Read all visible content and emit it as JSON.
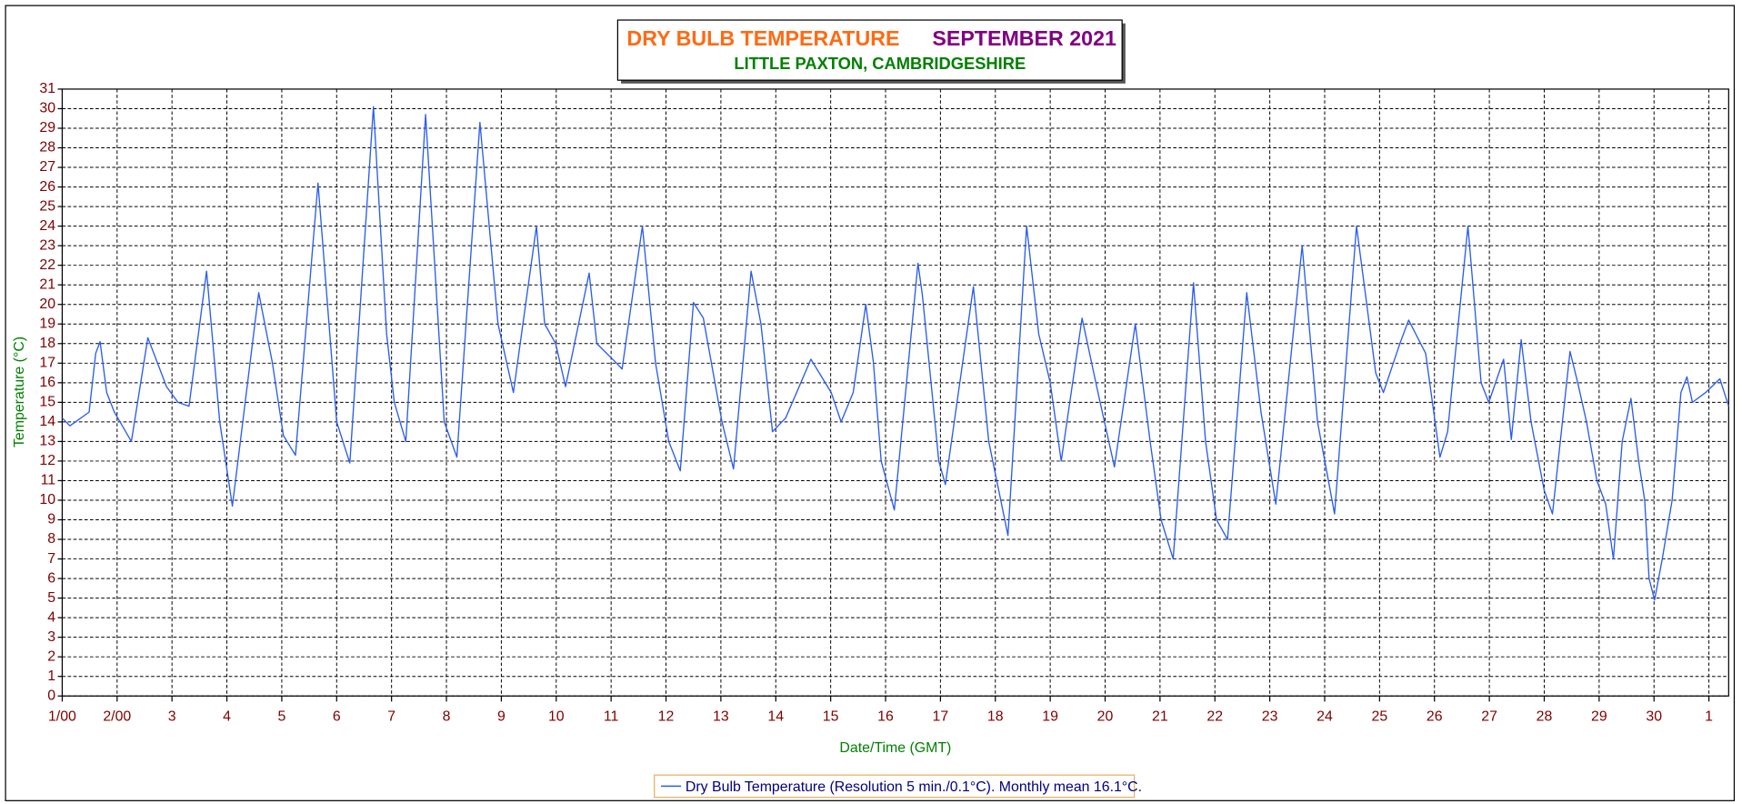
{
  "chart_data": {
    "type": "line",
    "title": "DRY BULB TEMPERATURE",
    "period": "SEPTEMBER 2021",
    "subtitle": "LITTLE PAXTON, CAMBRIDGESHIRE",
    "xlabel": "Date/Time (GMT)",
    "ylabel": "Temperature (°C)",
    "grid": true,
    "legend": "bottom",
    "xlim": [
      1,
      31.36
    ],
    "ylim": [
      0,
      31
    ],
    "yticks": [
      0,
      1,
      2,
      3,
      4,
      5,
      6,
      7,
      8,
      9,
      10,
      11,
      12,
      13,
      14,
      15,
      16,
      17,
      18,
      19,
      20,
      21,
      22,
      23,
      24,
      25,
      26,
      27,
      28,
      29,
      30,
      31
    ],
    "xticks": [
      {
        "value": 1,
        "label": "1/00"
      },
      {
        "value": 2,
        "label": "2/00"
      },
      3,
      4,
      5,
      6,
      7,
      8,
      9,
      10,
      11,
      12,
      13,
      14,
      15,
      16,
      17,
      18,
      19,
      20,
      21,
      22,
      23,
      24,
      25,
      26,
      27,
      28,
      29,
      30,
      {
        "value": 31,
        "label": "1"
      }
    ],
    "x": [
      1.0,
      1.14,
      1.49,
      1.61,
      1.69,
      1.81,
      1.95,
      2.26,
      2.56,
      2.9,
      3.11,
      3.31,
      3.63,
      3.87,
      4.1,
      4.58,
      4.83,
      5.03,
      5.25,
      5.66,
      6.0,
      6.24,
      6.67,
      6.91,
      7.05,
      7.26,
      7.62,
      7.96,
      8.19,
      8.61,
      8.94,
      9.22,
      9.64,
      9.79,
      9.99,
      10.17,
      10.6,
      10.74,
      11.1,
      11.2,
      11.57,
      11.81,
      12.05,
      12.26,
      12.5,
      12.68,
      13.02,
      13.23,
      13.55,
      13.73,
      13.94,
      14.18,
      14.64,
      15.01,
      15.19,
      15.41,
      15.64,
      15.78,
      15.92,
      16.16,
      16.59,
      16.67,
      16.97,
      17.09,
      17.6,
      17.88,
      18.23,
      18.57,
      18.79,
      19.0,
      19.2,
      19.58,
      19.87,
      20.17,
      20.55,
      20.82,
      21.02,
      21.24,
      21.61,
      21.83,
      22.03,
      22.23,
      22.58,
      22.84,
      23.11,
      23.59,
      23.87,
      24.18,
      24.58,
      24.93,
      25.07,
      25.37,
      25.53,
      25.84,
      26.1,
      26.24,
      26.61,
      26.85,
      26.99,
      27.26,
      27.4,
      27.58,
      27.76,
      28.0,
      28.15,
      28.47,
      28.61,
      28.77,
      28.96,
      29.12,
      29.26,
      29.42,
      29.58,
      29.72,
      29.83,
      29.91,
      30.01,
      30.15,
      30.33,
      30.49,
      30.6,
      30.7,
      30.94,
      31.2,
      31.36
    ],
    "series": [
      {
        "name": "Dry Bulb Temperature (Resolution 5 min./0.1°C). Monthly mean 16.1°C.",
        "color": "#2a5cf0",
        "values": [
          14.2,
          13.8,
          14.5,
          17.5,
          18.1,
          15.5,
          14.5,
          13.0,
          18.3,
          15.8,
          15.0,
          14.8,
          21.7,
          14.0,
          9.7,
          20.6,
          17.0,
          13.3,
          12.3,
          26.2,
          14.0,
          11.9,
          30.1,
          18.5,
          15.0,
          13.0,
          29.7,
          14.0,
          12.2,
          29.3,
          19.0,
          15.5,
          24.0,
          19.0,
          18.0,
          15.8,
          21.6,
          18.0,
          17.0,
          16.7,
          24.0,
          17.0,
          13.0,
          11.5,
          20.1,
          19.3,
          14.0,
          11.6,
          21.7,
          19.0,
          13.5,
          14.2,
          17.2,
          15.5,
          14.0,
          15.5,
          20.0,
          17.0,
          12.0,
          9.5,
          22.1,
          20.5,
          12.0,
          10.8,
          20.9,
          13.0,
          8.2,
          24.0,
          18.5,
          16.0,
          12.0,
          19.3,
          15.5,
          11.7,
          19.0,
          13.0,
          9.0,
          7.0,
          21.1,
          13.0,
          9.0,
          8.0,
          20.6,
          14.5,
          9.8,
          23.0,
          14.0,
          9.3,
          24.0,
          16.5,
          15.5,
          18.0,
          19.2,
          17.5,
          12.2,
          13.5,
          24.0,
          16.0,
          15.0,
          17.2,
          13.1,
          18.2,
          14.0,
          10.5,
          9.3,
          17.6,
          16.0,
          14.0,
          11.0,
          9.8,
          7.0,
          13.0,
          15.2,
          12.0,
          10.0,
          6.0,
          4.9,
          7.0,
          10.0,
          15.5,
          16.3,
          15.0,
          15.5,
          16.2,
          14.8
        ]
      }
    ]
  }
}
